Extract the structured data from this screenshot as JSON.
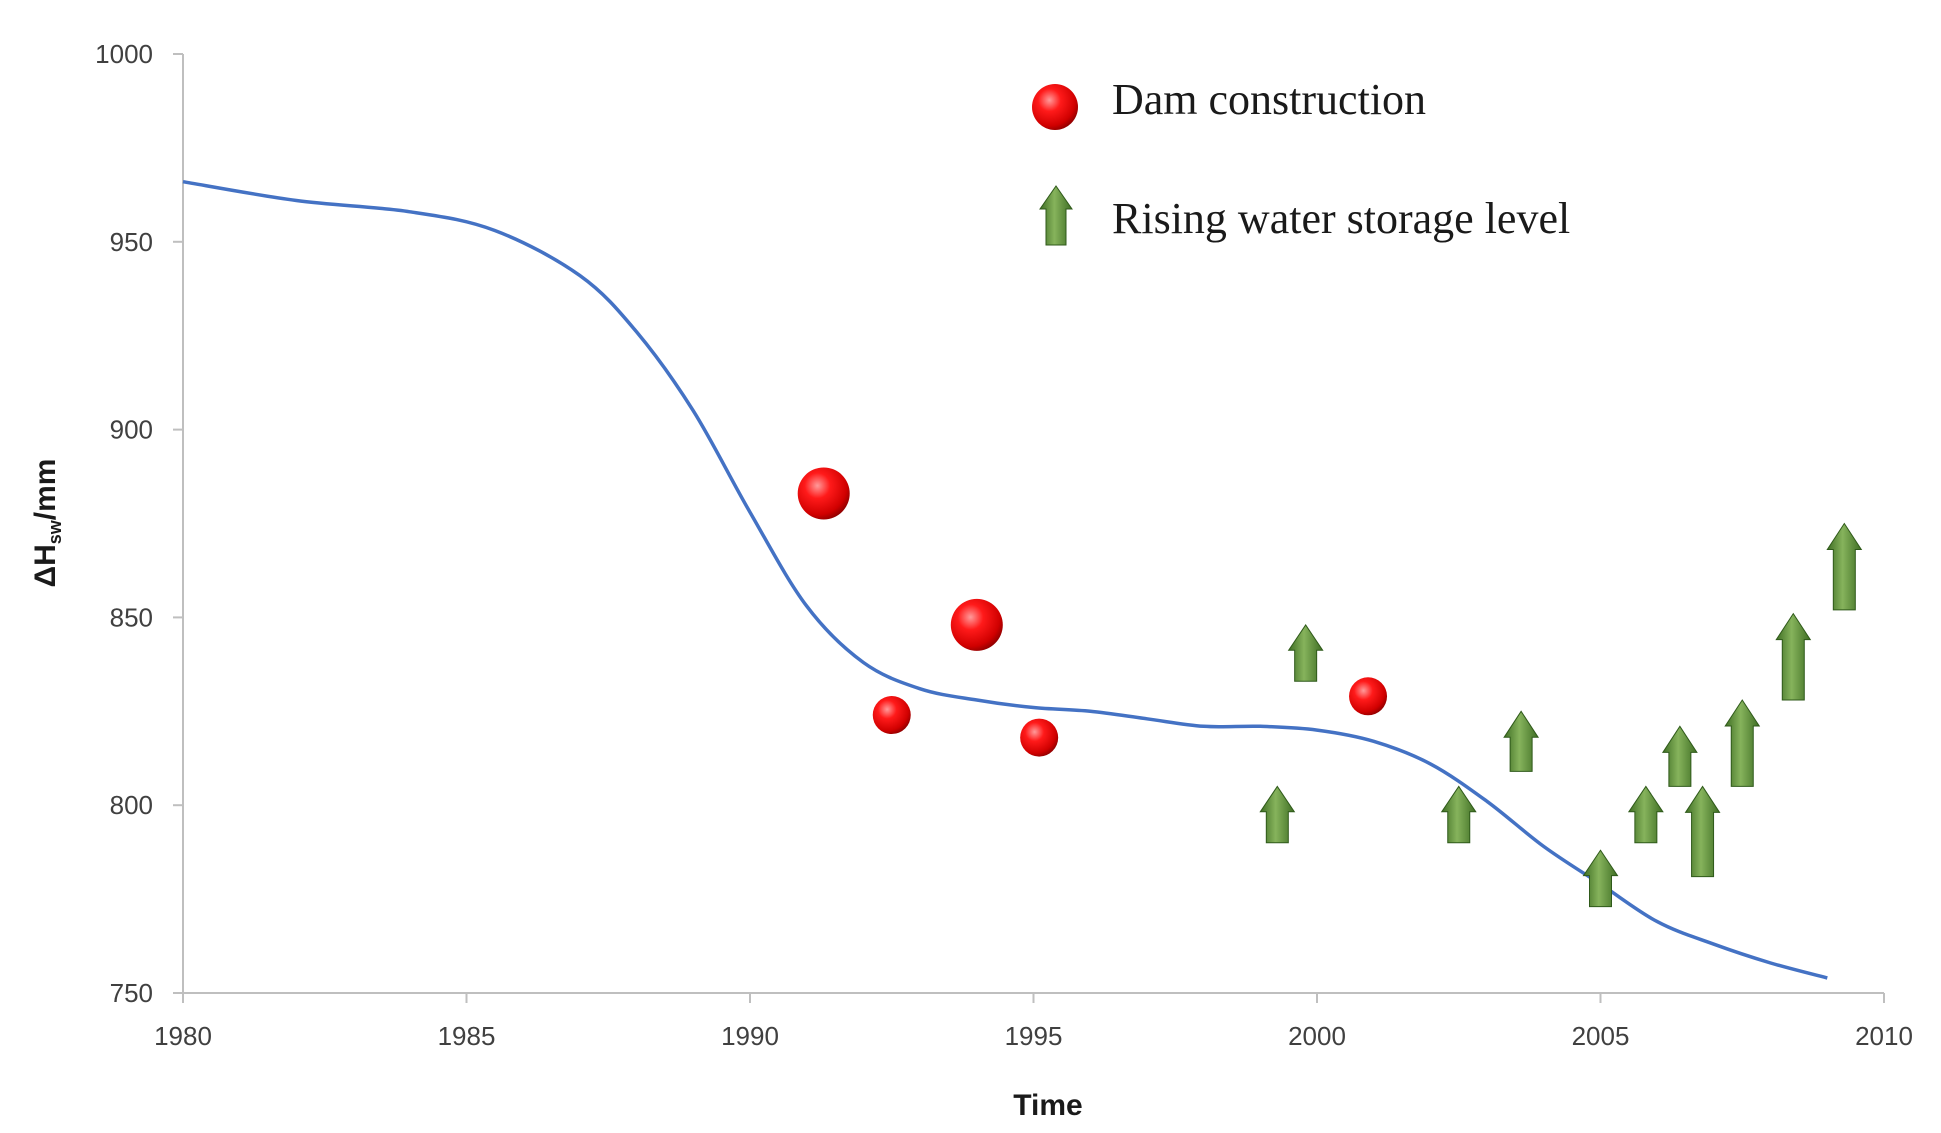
{
  "chart_data": {
    "type": "line",
    "title": "",
    "xlabel": "Time",
    "ylabel": {
      "prefix": "ΔH",
      "subscript": "sw",
      "suffix": "/mm"
    },
    "xlim": [
      1980,
      2010
    ],
    "ylim": [
      750,
      1000
    ],
    "xticks": [
      1980,
      1985,
      1990,
      1995,
      2000,
      2005,
      2010
    ],
    "yticks": [
      750,
      800,
      850,
      900,
      950,
      1000
    ],
    "grid": false,
    "series": [
      {
        "name": "ΔHsw",
        "kind": "smooth-line",
        "color": "#4472c4",
        "x": [
          1980,
          1982,
          1984,
          1985.5,
          1987,
          1988,
          1989,
          1990,
          1991,
          1992,
          1993,
          1994,
          1995,
          1996,
          1997,
          1998,
          1999,
          2000,
          2001,
          2002,
          2003,
          2004,
          2005,
          2006,
          2007,
          2008,
          2009
        ],
        "y": [
          966,
          961,
          958,
          953,
          941,
          926,
          905,
          878,
          853,
          838,
          831,
          828,
          826,
          825,
          823,
          821,
          821,
          820,
          817,
          811,
          801,
          789,
          779,
          769,
          763,
          758,
          754
        ]
      }
    ],
    "legend": {
      "position": "top-right",
      "items": [
        {
          "label": "Dam construction",
          "marker": "red-sphere"
        },
        {
          "label": "Rising water storage level",
          "marker": "green-up-arrow"
        }
      ]
    },
    "dam_construction": {
      "color": "#e00000",
      "points": [
        {
          "x": 1991.3,
          "y": 883,
          "size": "large"
        },
        {
          "x": 1992.5,
          "y": 824,
          "size": "small"
        },
        {
          "x": 1994.0,
          "y": 848,
          "size": "large"
        },
        {
          "x": 1995.1,
          "y": 818,
          "size": "small"
        },
        {
          "x": 2000.9,
          "y": 829,
          "size": "small"
        }
      ]
    },
    "rising_water_storage": {
      "color": "#5a8a3a",
      "arrows": [
        {
          "x": 1999.3,
          "y_base": 790,
          "y_tip": 805
        },
        {
          "x": 1999.8,
          "y_base": 833,
          "y_tip": 848
        },
        {
          "x": 2002.5,
          "y_base": 790,
          "y_tip": 805
        },
        {
          "x": 2003.6,
          "y_base": 809,
          "y_tip": 825
        },
        {
          "x": 2005.0,
          "y_base": 773,
          "y_tip": 788
        },
        {
          "x": 2005.8,
          "y_base": 790,
          "y_tip": 805
        },
        {
          "x": 2006.4,
          "y_base": 805,
          "y_tip": 821
        },
        {
          "x": 2006.8,
          "y_base": 781,
          "y_tip": 805
        },
        {
          "x": 2007.5,
          "y_base": 805,
          "y_tip": 828
        },
        {
          "x": 2008.4,
          "y_base": 828,
          "y_tip": 851
        },
        {
          "x": 2009.3,
          "y_base": 852,
          "y_tip": 875
        }
      ]
    }
  }
}
